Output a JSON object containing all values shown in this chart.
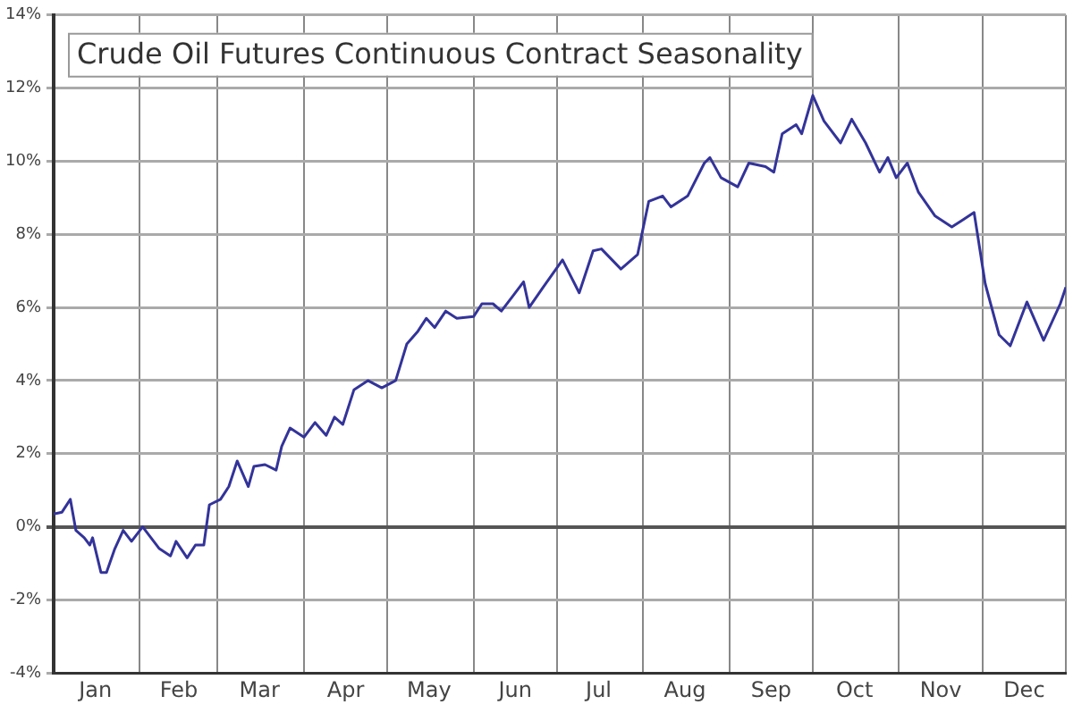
{
  "chart_data": {
    "type": "line",
    "title": "Crude Oil Futures Continuous Contract Seasonality",
    "x": [
      "--01-01",
      "--01-04",
      "--01-07",
      "--01-09",
      "--01-12",
      "--01-14",
      "--01-15",
      "--01-18",
      "--01-20",
      "--01-23",
      "--01-26",
      "--01-29",
      "--02-02",
      "--02-05",
      "--02-08",
      "--02-12",
      "--02-14",
      "--02-18",
      "--02-21",
      "--02-24",
      "--02-26",
      "--03-02",
      "--03-05",
      "--03-08",
      "--03-12",
      "--03-14",
      "--03-18",
      "--03-22",
      "--03-24",
      "--03-27",
      "--04-01",
      "--04-05",
      "--04-09",
      "--04-12",
      "--04-15",
      "--04-19",
      "--04-24",
      "--04-29",
      "--05-04",
      "--05-08",
      "--05-12",
      "--05-15",
      "--05-18",
      "--05-22",
      "--05-26",
      "--06-01",
      "--06-04",
      "--06-08",
      "--06-11",
      "--06-15",
      "--06-19",
      "--06-21",
      "--06-26",
      "--07-03",
      "--07-09",
      "--07-14",
      "--07-17",
      "--07-24",
      "--07-30",
      "--08-03",
      "--08-08",
      "--08-11",
      "--08-17",
      "--08-23",
      "--08-25",
      "--08-29",
      "--09-04",
      "--09-08",
      "--09-14",
      "--09-17",
      "--09-20",
      "--09-25",
      "--09-27",
      "--10-01",
      "--10-05",
      "--10-11",
      "--10-15",
      "--10-20",
      "--10-25",
      "--10-28",
      "--10-31",
      "--11-04",
      "--11-08",
      "--11-14",
      "--11-20",
      "--11-24",
      "--11-28",
      "--12-02",
      "--12-07",
      "--12-11",
      "--12-17",
      "--12-23",
      "--12-29",
      "--12-31"
    ],
    "series": [
      {
        "color": "#33339a",
        "values": [
          0.35,
          0.4,
          0.75,
          -0.1,
          -0.3,
          -0.5,
          -0.3,
          -1.25,
          -1.25,
          -0.6,
          -0.1,
          -0.4,
          0,
          -0.3,
          -0.6,
          -0.8,
          -0.4,
          -0.85,
          -0.5,
          -0.5,
          0.6,
          0.75,
          1.1,
          1.8,
          1.1,
          1.65,
          1.7,
          1.55,
          2.2,
          2.7,
          2.45,
          2.85,
          2.5,
          3.0,
          2.8,
          3.75,
          4.0,
          3.8,
          4.0,
          5.0,
          5.35,
          5.7,
          5.45,
          5.9,
          5.7,
          5.75,
          6.1,
          6.1,
          5.9,
          6.3,
          6.7,
          6.0,
          6.55,
          7.3,
          6.4,
          7.55,
          7.6,
          7.05,
          7.45,
          8.9,
          9.05,
          8.75,
          9.05,
          9.95,
          10.1,
          9.55,
          9.3,
          9.95,
          9.85,
          9.7,
          10.75,
          11.0,
          10.75,
          11.8,
          11.1,
          10.5,
          11.15,
          10.5,
          9.7,
          10.1,
          9.55,
          9.95,
          9.15,
          8.5,
          8.2,
          8.4,
          8.6,
          6.65,
          5.25,
          4.95,
          6.15,
          5.1,
          6.1,
          6.55
        ]
      }
    ],
    "xlim": [
      "--01-01",
      "--12-31"
    ],
    "xticks": [
      {
        "value": "--01-01",
        "label": null
      },
      {
        "value": "--01-16",
        "label": "Jan"
      },
      {
        "value": "--02-01",
        "label": null
      },
      {
        "value": "--02-15",
        "label": "Feb"
      },
      {
        "value": "--03-01",
        "label": null
      },
      {
        "value": "--03-16",
        "label": "Mar"
      },
      {
        "value": "--04-01",
        "label": null
      },
      {
        "value": "--04-16",
        "label": "Apr"
      },
      {
        "value": "--05-01",
        "label": null
      },
      {
        "value": "--05-16",
        "label": "May"
      },
      {
        "value": "--06-01",
        "label": null
      },
      {
        "value": "--06-16",
        "label": "Jun"
      },
      {
        "value": "--07-01",
        "label": null
      },
      {
        "value": "--07-16",
        "label": "Jul"
      },
      {
        "value": "--08-01",
        "label": null
      },
      {
        "value": "--08-16",
        "label": "Aug"
      },
      {
        "value": "--09-01",
        "label": null
      },
      {
        "value": "--09-16",
        "label": "Sep"
      },
      {
        "value": "--10-01",
        "label": null
      },
      {
        "value": "--10-16",
        "label": "Oct"
      },
      {
        "value": "--11-01",
        "label": null
      },
      {
        "value": "--11-16",
        "label": "Nov"
      },
      {
        "value": "--12-01",
        "label": null
      },
      {
        "value": "--12-16",
        "label": "Dec"
      },
      {
        "value": "--12-31",
        "label": null
      }
    ],
    "ylim": [
      -4,
      14
    ],
    "yticks": [
      {
        "value": -4,
        "label": "-4%"
      },
      {
        "value": -2,
        "label": "-2%"
      },
      {
        "value": 0,
        "label": "0%"
      },
      {
        "value": 2,
        "label": "2%"
      },
      {
        "value": 4,
        "label": "4%"
      },
      {
        "value": 6,
        "label": "6%"
      },
      {
        "value": 8,
        "label": "8%"
      },
      {
        "value": 10,
        "label": "10%"
      },
      {
        "value": 12,
        "label": "12%"
      },
      {
        "value": 14,
        "label": "14%"
      }
    ],
    "grid": true,
    "legend": false,
    "marker": "none",
    "line_style": "solid"
  }
}
